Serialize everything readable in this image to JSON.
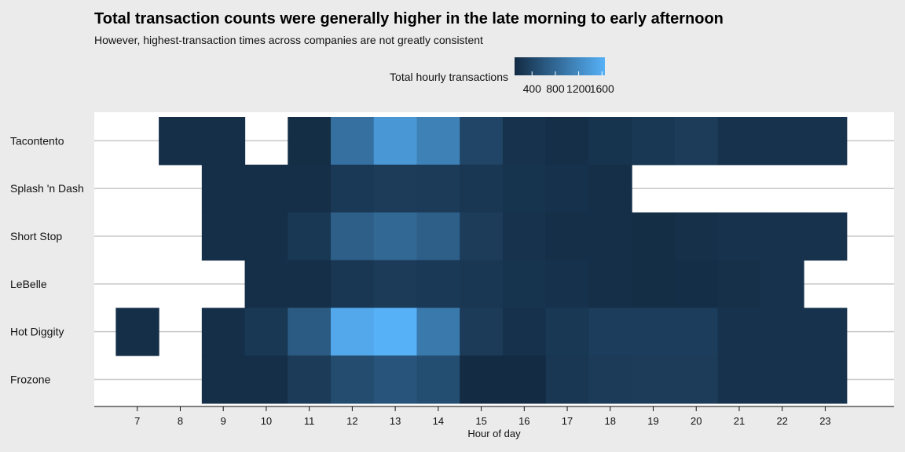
{
  "chart_data": {
    "type": "heatmap",
    "title": "Total transaction counts were generally higher in the late morning to early afternoon",
    "subtitle": "However, highest-transaction times across companies are not greatly consistent",
    "xlabel": "Hour of day",
    "ylabel": "",
    "x": [
      7,
      8,
      9,
      10,
      11,
      12,
      13,
      14,
      15,
      16,
      17,
      18,
      19,
      20,
      21,
      22,
      23
    ],
    "y": [
      "Tacontento",
      "Splash 'n Dash",
      "Short Stop",
      "LeBelle",
      "Hot Diggity",
      "Frozone"
    ],
    "legend": {
      "title": "Total hourly transactions",
      "ticks": [
        400,
        800,
        1200,
        1600
      ],
      "min": 100,
      "max": 1650,
      "low_color": "#132b43",
      "high_color": "#56b1f7",
      "placement": "top"
    },
    "cells": [
      {
        "company": "Tacontento",
        "values": [
          null,
          150,
          150,
          null,
          130,
          900,
          1350,
          1100,
          400,
          180,
          150,
          200,
          250,
          300,
          180,
          180,
          180
        ]
      },
      {
        "company": "Splash 'n Dash",
        "values": [
          null,
          null,
          150,
          150,
          150,
          260,
          300,
          280,
          230,
          200,
          170,
          150,
          null,
          null,
          null,
          null,
          null
        ]
      },
      {
        "company": "Short Stop",
        "values": [
          null,
          null,
          150,
          150,
          250,
          700,
          800,
          700,
          300,
          180,
          150,
          150,
          130,
          160,
          180,
          180,
          180
        ]
      },
      {
        "company": "LeBelle",
        "values": [
          null,
          null,
          null,
          150,
          150,
          240,
          280,
          260,
          240,
          200,
          170,
          150,
          130,
          140,
          160,
          180,
          null
        ]
      },
      {
        "company": "Hot Diggity",
        "values": [
          150,
          null,
          150,
          250,
          650,
          1550,
          1650,
          1000,
          280,
          170,
          250,
          310,
          310,
          310,
          180,
          180,
          180
        ]
      },
      {
        "company": "Frozone",
        "values": [
          null,
          null,
          150,
          150,
          280,
          480,
          580,
          500,
          100,
          100,
          230,
          280,
          300,
          300,
          180,
          180,
          180
        ]
      }
    ],
    "grid": true
  }
}
